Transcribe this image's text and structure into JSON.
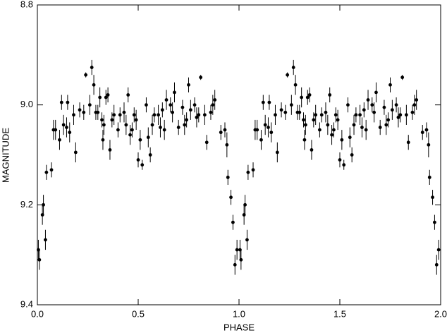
{
  "chart_data": {
    "type": "scatter",
    "x_label": "PHASE",
    "y_label": "MAGNITUDE",
    "xlim": [
      0,
      2
    ],
    "ylim": [
      8.8,
      9.4
    ],
    "y_inverted": true,
    "color": "#000000",
    "xticks": [
      {
        "value": 0,
        "label": "0.0"
      },
      {
        "value": 0.5,
        "label": "0.5"
      },
      {
        "value": 1,
        "label": "1.0"
      },
      {
        "value": 1.5,
        "label": "1.5"
      },
      {
        "value": 2,
        "label": "2.0"
      }
    ],
    "yticks": [
      8.8,
      {
        "value": 9,
        "label": "9.0"
      },
      9.2,
      9.4
    ],
    "x": [
      0.005,
      0.01,
      0.025,
      0.03,
      0.04,
      0.045,
      0.07,
      0.08,
      0.09,
      0.11,
      0.12,
      0.13,
      0.145,
      0.15,
      0.16,
      0.18,
      0.19,
      0.21,
      0.23,
      0.24,
      0.26,
      0.27,
      0.28,
      0.29,
      0.3,
      0.31,
      0.32,
      0.325,
      0.33,
      0.34,
      0.35,
      0.36,
      0.37,
      0.38,
      0.4,
      0.41,
      0.43,
      0.44,
      0.45,
      0.46,
      0.47,
      0.48,
      0.49,
      0.5,
      0.51,
      0.52,
      0.54,
      0.55,
      0.56,
      0.57,
      0.58,
      0.6,
      0.61,
      0.62,
      0.63,
      0.64,
      0.66,
      0.67,
      0.68,
      0.7,
      0.72,
      0.73,
      0.74,
      0.75,
      0.76,
      0.78,
      0.79,
      0.8,
      0.81,
      0.83,
      0.84,
      0.86,
      0.87,
      0.88,
      0.91,
      0.93,
      0.94,
      0.945,
      0.96,
      0.97,
      0.98,
      0.99,
      1.005,
      1.01,
      1.025,
      1.03,
      1.04,
      1.045,
      1.07,
      1.08,
      1.09,
      1.11,
      1.12,
      1.13,
      1.145,
      1.15,
      1.16,
      1.18,
      1.19,
      1.21,
      1.23,
      1.24,
      1.26,
      1.27,
      1.28,
      1.29,
      1.3,
      1.31,
      1.32,
      1.325,
      1.33,
      1.34,
      1.35,
      1.36,
      1.37,
      1.38,
      1.4,
      1.41,
      1.43,
      1.44,
      1.45,
      1.46,
      1.47,
      1.48,
      1.49,
      1.5,
      1.51,
      1.52,
      1.54,
      1.55,
      1.56,
      1.57,
      1.58,
      1.6,
      1.61,
      1.62,
      1.63,
      1.64,
      1.66,
      1.67,
      1.68,
      1.7,
      1.72,
      1.73,
      1.74,
      1.75,
      1.76,
      1.78,
      1.79,
      1.8,
      1.81,
      1.83,
      1.84,
      1.86,
      1.87,
      1.88,
      1.91,
      1.93,
      1.94,
      1.945,
      1.96,
      1.97,
      1.98,
      1.99
    ],
    "values": [
      9.29,
      9.31,
      9.22,
      9.2,
      9.27,
      9.135,
      9.13,
      9.05,
      9.05,
      9.07,
      8.995,
      9.04,
      9.045,
      8.995,
      9.055,
      9.02,
      9.095,
      9.01,
      9.015,
      8.94,
      9.0,
      8.925,
      8.96,
      9.015,
      9.015,
      8.985,
      9.03,
      9.07,
      9.04,
      8.985,
      8.98,
      9.09,
      9.03,
      9.02,
      9.05,
      9.02,
      9.015,
      9.04,
      8.98,
      9.06,
      9.05,
      9.02,
      9.03,
      9.11,
      9.07,
      9.12,
      9.0,
      9.065,
      9.1,
      9.04,
      9.02,
      9.02,
      9.045,
      9.01,
      9.05,
      8.99,
      9.0,
      9.015,
      8.975,
      9.045,
      9.005,
      9.04,
      9.03,
      8.96,
      9.01,
      9.0,
      9.025,
      9.02,
      8.945,
      9.02,
      9.075,
      9.015,
      9.0,
      8.99,
      9.055,
      9.05,
      9.08,
      9.145,
      9.185,
      9.235,
      9.32,
      9.29,
      9.29,
      9.31,
      9.22,
      9.2,
      9.27,
      9.135,
      9.13,
      9.05,
      9.05,
      9.07,
      8.995,
      9.04,
      9.045,
      8.995,
      9.055,
      9.02,
      9.095,
      9.01,
      9.015,
      8.94,
      9.0,
      8.925,
      8.96,
      9.015,
      9.015,
      8.985,
      9.03,
      9.07,
      9.04,
      8.985,
      8.98,
      9.09,
      9.03,
      9.02,
      9.05,
      9.02,
      9.015,
      9.04,
      8.98,
      9.06,
      9.05,
      9.02,
      9.03,
      9.11,
      9.07,
      9.12,
      9.0,
      9.065,
      9.1,
      9.04,
      9.02,
      9.02,
      9.045,
      9.01,
      9.05,
      8.99,
      9.0,
      9.015,
      8.975,
      9.045,
      9.005,
      9.04,
      9.03,
      8.96,
      9.01,
      9.0,
      9.025,
      9.02,
      8.945,
      9.02,
      9.075,
      9.015,
      9.0,
      8.99,
      9.055,
      9.05,
      9.08,
      9.145,
      9.185,
      9.235,
      9.32,
      9.29
    ],
    "errors": [
      0.02,
      0.02,
      0.02,
      0.02,
      0.02,
      0.015,
      0.015,
      0.02,
      0.02,
      0.02,
      0.015,
      0.02,
      0.02,
      0.015,
      0.02,
      0.02,
      0.02,
      0.015,
      0.015,
      0.005,
      0.02,
      0.015,
      0.02,
      0.015,
      0.015,
      0.02,
      0.015,
      0.02,
      0.02,
      0.015,
      0.015,
      0.02,
      0.015,
      0.02,
      0.015,
      0.015,
      0.02,
      0.02,
      0.015,
      0.02,
      0.015,
      0.015,
      0.02,
      0.015,
      0.02,
      0.01,
      0.015,
      0.02,
      0.015,
      0.02,
      0.015,
      0.02,
      0.02,
      0.015,
      0.02,
      0.02,
      0.015,
      0.02,
      0.02,
      0.015,
      0.015,
      0.02,
      0.015,
      0.015,
      0.02,
      0.015,
      0.02,
      0.015,
      0.005,
      0.02,
      0.015,
      0.015,
      0.02,
      0.02,
      0.015,
      0.015,
      0.025,
      0.015,
      0.015,
      0.015,
      0.02,
      0.02,
      0.02,
      0.02,
      0.02,
      0.02,
      0.02,
      0.015,
      0.015,
      0.02,
      0.02,
      0.02,
      0.015,
      0.02,
      0.02,
      0.015,
      0.02,
      0.02,
      0.02,
      0.015,
      0.015,
      0.005,
      0.02,
      0.015,
      0.02,
      0.015,
      0.015,
      0.02,
      0.015,
      0.02,
      0.02,
      0.015,
      0.015,
      0.02,
      0.015,
      0.02,
      0.015,
      0.015,
      0.02,
      0.02,
      0.015,
      0.02,
      0.015,
      0.015,
      0.02,
      0.015,
      0.02,
      0.01,
      0.015,
      0.02,
      0.015,
      0.02,
      0.015,
      0.02,
      0.02,
      0.015,
      0.02,
      0.02,
      0.015,
      0.02,
      0.02,
      0.015,
      0.015,
      0.02,
      0.015,
      0.015,
      0.02,
      0.015,
      0.02,
      0.015,
      0.005,
      0.02,
      0.015,
      0.015,
      0.02,
      0.02,
      0.015,
      0.015,
      0.025,
      0.015,
      0.015,
      0.015,
      0.02,
      0.02
    ]
  }
}
